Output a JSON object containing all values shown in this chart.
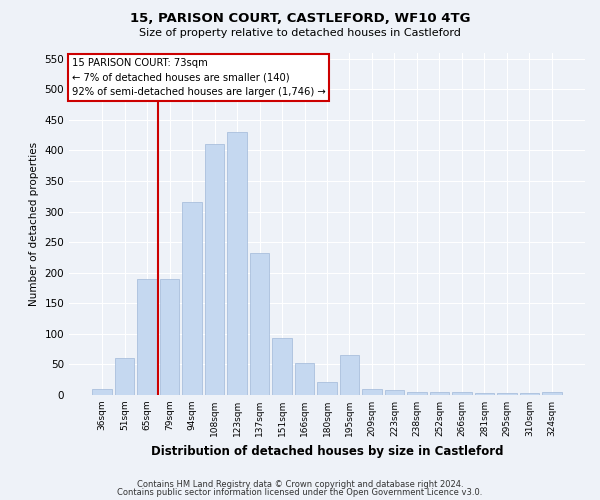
{
  "title": "15, PARISON COURT, CASTLEFORD, WF10 4TG",
  "subtitle": "Size of property relative to detached houses in Castleford",
  "xlabel": "Distribution of detached houses by size in Castleford",
  "ylabel": "Number of detached properties",
  "footer1": "Contains HM Land Registry data © Crown copyright and database right 2024.",
  "footer2": "Contains public sector information licensed under the Open Government Licence v3.0.",
  "categories": [
    "36sqm",
    "51sqm",
    "65sqm",
    "79sqm",
    "94sqm",
    "108sqm",
    "123sqm",
    "137sqm",
    "151sqm",
    "166sqm",
    "180sqm",
    "195sqm",
    "209sqm",
    "223sqm",
    "238sqm",
    "252sqm",
    "266sqm",
    "281sqm",
    "295sqm",
    "310sqm",
    "324sqm"
  ],
  "values": [
    10,
    60,
    190,
    190,
    315,
    410,
    430,
    232,
    93,
    52,
    22,
    65,
    10,
    8,
    5,
    5,
    5,
    4,
    4,
    4,
    5
  ],
  "bar_color": "#c5d8f0",
  "bar_edge_color": "#a0b8d8",
  "vline_color": "#cc0000",
  "ylim": [
    0,
    560
  ],
  "yticks": [
    0,
    50,
    100,
    150,
    200,
    250,
    300,
    350,
    400,
    450,
    500,
    550
  ],
  "annotation_text": "15 PARISON COURT: 73sqm\n← 7% of detached houses are smaller (140)\n92% of semi-detached houses are larger (1,746) →",
  "annotation_box_color": "#ffffff",
  "annotation_box_edge": "#cc0000",
  "bg_color": "#eef2f8",
  "plot_bg_color": "#eef2f8",
  "grid_color": "#ffffff"
}
